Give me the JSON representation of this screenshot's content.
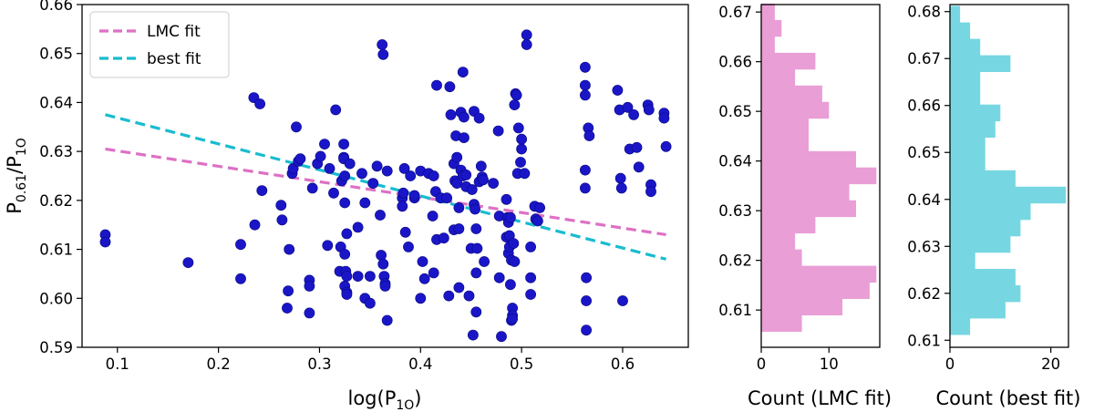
{
  "chart_data": [
    {
      "type": "scatter",
      "xlabel_base": "log(P",
      "xlabel_sub": "1O",
      "xlabel_close": ")",
      "ylabel_base": "P",
      "ylabel_sub1": "0.61",
      "ylabel_slash": "/P",
      "ylabel_sub2": "1O",
      "xlim": [
        0.065,
        0.665
      ],
      "ylim": [
        0.59,
        0.66
      ],
      "xticks": [
        0.1,
        0.2,
        0.3,
        0.4,
        0.5,
        0.6
      ],
      "xtick_labels": [
        "0.1",
        "0.2",
        "0.3",
        "0.4",
        "0.5",
        "0.6"
      ],
      "yticks": [
        0.59,
        0.6,
        0.61,
        0.62,
        0.63,
        0.64,
        0.65,
        0.66
      ],
      "ytick_labels": [
        "0.59",
        "0.60",
        "0.61",
        "0.62",
        "0.63",
        "0.64",
        "0.65",
        "0.66"
      ],
      "point_color": "#1a16c8",
      "points": [
        [
          0.088,
          0.613
        ],
        [
          0.088,
          0.6115
        ],
        [
          0.17,
          0.6073
        ],
        [
          0.222,
          0.611
        ],
        [
          0.222,
          0.604
        ],
        [
          0.235,
          0.641
        ],
        [
          0.236,
          0.615
        ],
        [
          0.241,
          0.6397
        ],
        [
          0.243,
          0.622
        ],
        [
          0.262,
          0.619
        ],
        [
          0.263,
          0.616
        ],
        [
          0.269,
          0.6015
        ],
        [
          0.27,
          0.61
        ],
        [
          0.268,
          0.598
        ],
        [
          0.273,
          0.6255
        ],
        [
          0.274,
          0.6265
        ],
        [
          0.277,
          0.635
        ],
        [
          0.279,
          0.628
        ],
        [
          0.281,
          0.6285
        ],
        [
          0.29,
          0.6037
        ],
        [
          0.29,
          0.6025
        ],
        [
          0.29,
          0.597
        ],
        [
          0.293,
          0.6225
        ],
        [
          0.298,
          0.6275
        ],
        [
          0.301,
          0.629
        ],
        [
          0.305,
          0.6315
        ],
        [
          0.308,
          0.6108
        ],
        [
          0.31,
          0.6265
        ],
        [
          0.314,
          0.6215
        ],
        [
          0.316,
          0.6385
        ],
        [
          0.32,
          0.6055
        ],
        [
          0.321,
          0.6105
        ],
        [
          0.322,
          0.624
        ],
        [
          0.324,
          0.6288
        ],
        [
          0.324,
          0.6285
        ],
        [
          0.324,
          0.6315
        ],
        [
          0.325,
          0.625
        ],
        [
          0.325,
          0.6195
        ],
        [
          0.327,
          0.6132
        ],
        [
          0.325,
          0.609
        ],
        [
          0.326,
          0.6055
        ],
        [
          0.327,
          0.6045
        ],
        [
          0.325,
          0.6025
        ],
        [
          0.327,
          0.6012
        ],
        [
          0.327,
          0.6008
        ],
        [
          0.33,
          0.6275
        ],
        [
          0.338,
          0.6145
        ],
        [
          0.338,
          0.6045
        ],
        [
          0.342,
          0.6255
        ],
        [
          0.345,
          0.6
        ],
        [
          0.345,
          0.6195
        ],
        [
          0.35,
          0.6045
        ],
        [
          0.35,
          0.599
        ],
        [
          0.353,
          0.6235
        ],
        [
          0.357,
          0.627
        ],
        [
          0.36,
          0.617
        ],
        [
          0.361,
          0.6088
        ],
        [
          0.362,
          0.6518
        ],
        [
          0.363,
          0.6498
        ],
        [
          0.363,
          0.607
        ],
        [
          0.364,
          0.6045
        ],
        [
          0.365,
          0.603
        ],
        [
          0.365,
          0.6025
        ],
        [
          0.367,
          0.626
        ],
        [
          0.367,
          0.5955
        ],
        [
          0.382,
          0.6205
        ],
        [
          0.382,
          0.6188
        ],
        [
          0.383,
          0.6215
        ],
        [
          0.384,
          0.6265
        ],
        [
          0.385,
          0.6135
        ],
        [
          0.388,
          0.6105
        ],
        [
          0.39,
          0.625
        ],
        [
          0.394,
          0.6205
        ],
        [
          0.394,
          0.621
        ],
        [
          0.4,
          0.626
        ],
        [
          0.4,
          0.6
        ],
        [
          0.402,
          0.6075
        ],
        [
          0.404,
          0.604
        ],
        [
          0.408,
          0.6255
        ],
        [
          0.412,
          0.6168
        ],
        [
          0.413,
          0.6052
        ],
        [
          0.413,
          0.625
        ],
        [
          0.415,
          0.6218
        ],
        [
          0.416,
          0.6435
        ],
        [
          0.416,
          0.612
        ],
        [
          0.42,
          0.6205
        ],
        [
          0.423,
          0.6123
        ],
        [
          0.426,
          0.6205
        ],
        [
          0.428,
          0.6005
        ],
        [
          0.429,
          0.6432
        ],
        [
          0.43,
          0.6375
        ],
        [
          0.433,
          0.614
        ],
        [
          0.433,
          0.6275
        ],
        [
          0.434,
          0.624
        ],
        [
          0.435,
          0.6332
        ],
        [
          0.436,
          0.6288
        ],
        [
          0.436,
          0.6235
        ],
        [
          0.438,
          0.6185
        ],
        [
          0.438,
          0.6142
        ],
        [
          0.438,
          0.6022
        ],
        [
          0.44,
          0.638
        ],
        [
          0.44,
          0.6262
        ],
        [
          0.442,
          0.6462
        ],
        [
          0.442,
          0.625
        ],
        [
          0.443,
          0.637
        ],
        [
          0.443,
          0.6328
        ],
        [
          0.445,
          0.6252
        ],
        [
          0.445,
          0.6228
        ],
        [
          0.448,
          0.6005
        ],
        [
          0.45,
          0.6102
        ],
        [
          0.451,
          0.6222
        ],
        [
          0.452,
          0.5925
        ],
        [
          0.453,
          0.6382
        ],
        [
          0.453,
          0.6192
        ],
        [
          0.454,
          0.6182
        ],
        [
          0.455,
          0.6142
        ],
        [
          0.455,
          0.6052
        ],
        [
          0.455,
          0.5972
        ],
        [
          0.456,
          0.6102
        ],
        [
          0.458,
          0.6368
        ],
        [
          0.458,
          0.6238
        ],
        [
          0.46,
          0.627
        ],
        [
          0.461,
          0.6248
        ],
        [
          0.462,
          0.6242
        ],
        [
          0.463,
          0.6075
        ],
        [
          0.472,
          0.6235
        ],
        [
          0.477,
          0.6342
        ],
        [
          0.478,
          0.6168
        ],
        [
          0.478,
          0.6042
        ],
        [
          0.48,
          0.5922
        ],
        [
          0.485,
          0.6125
        ],
        [
          0.485,
          0.6202
        ],
        [
          0.486,
          0.6165
        ],
        [
          0.487,
          0.6155
        ],
        [
          0.487,
          0.6092
        ],
        [
          0.488,
          0.6128
        ],
        [
          0.488,
          0.6105
        ],
        [
          0.489,
          0.6165
        ],
        [
          0.489,
          0.6028
        ],
        [
          0.49,
          0.6078
        ],
        [
          0.49,
          0.5955
        ],
        [
          0.491,
          0.598
        ],
        [
          0.491,
          0.5965
        ],
        [
          0.491,
          0.5958
        ],
        [
          0.492,
          0.6112
        ],
        [
          0.493,
          0.6395
        ],
        [
          0.493,
          0.6075
        ],
        [
          0.494,
          0.6418
        ],
        [
          0.495,
          0.6415
        ],
        [
          0.496,
          0.6255
        ],
        [
          0.497,
          0.6348
        ],
        [
          0.499,
          0.6278
        ],
        [
          0.5,
          0.6325
        ],
        [
          0.5,
          0.6305
        ],
        [
          0.503,
          0.6255
        ],
        [
          0.505,
          0.6538
        ],
        [
          0.505,
          0.6518
        ],
        [
          0.509,
          0.6105
        ],
        [
          0.509,
          0.6042
        ],
        [
          0.509,
          0.6008
        ],
        [
          0.513,
          0.6188
        ],
        [
          0.514,
          0.6162
        ],
        [
          0.516,
          0.6158
        ],
        [
          0.518,
          0.6185
        ],
        [
          0.563,
          0.6472
        ],
        [
          0.563,
          0.6435
        ],
        [
          0.563,
          0.6415
        ],
        [
          0.563,
          0.6262
        ],
        [
          0.563,
          0.6225
        ],
        [
          0.564,
          0.6042
        ],
        [
          0.564,
          0.5995
        ],
        [
          0.564,
          0.5935
        ],
        [
          0.566,
          0.6348
        ],
        [
          0.567,
          0.6332
        ],
        [
          0.595,
          0.6425
        ],
        [
          0.597,
          0.6385
        ],
        [
          0.598,
          0.6245
        ],
        [
          0.599,
          0.6225
        ],
        [
          0.6,
          0.5995
        ],
        [
          0.605,
          0.639
        ],
        [
          0.607,
          0.6305
        ],
        [
          0.611,
          0.6375
        ],
        [
          0.614,
          0.6308
        ],
        [
          0.616,
          0.6268
        ],
        [
          0.625,
          0.6395
        ],
        [
          0.626,
          0.6385
        ],
        [
          0.628,
          0.6232
        ],
        [
          0.628,
          0.6218
        ],
        [
          0.641,
          0.6378
        ],
        [
          0.641,
          0.6368
        ],
        [
          0.643,
          0.631
        ]
      ],
      "lines": [
        {
          "name": "LMC fit",
          "color": "#de70c4",
          "x": [
            0.088,
            0.643
          ],
          "y": [
            0.6305,
            0.613
          ]
        },
        {
          "name": "best fit",
          "color": "#18bccf",
          "x": [
            0.088,
            0.643
          ],
          "y": [
            0.6375,
            0.608
          ]
        }
      ],
      "legend_position": "upper-left"
    },
    {
      "type": "histogram-horizontal",
      "xlabel": "Count (LMC fit)",
      "ylim": [
        0.6025,
        0.6715
      ],
      "xlim": [
        0,
        17.5
      ],
      "xticks": [
        0,
        10
      ],
      "xtick_labels": [
        "0",
        "10"
      ],
      "yticks": [
        0.61,
        0.62,
        0.63,
        0.64,
        0.65,
        0.66,
        0.67
      ],
      "ytick_labels": [
        "0.61",
        "0.62",
        "0.63",
        "0.64",
        "0.65",
        "0.66",
        "0.67"
      ],
      "color": "#e99ed6",
      "bins": [
        {
          "lo": 0.6057,
          "hi": 0.609,
          "count": 6
        },
        {
          "lo": 0.609,
          "hi": 0.6123,
          "count": 12
        },
        {
          "lo": 0.6123,
          "hi": 0.6156,
          "count": 16
        },
        {
          "lo": 0.6156,
          "hi": 0.6189,
          "count": 17
        },
        {
          "lo": 0.6189,
          "hi": 0.6222,
          "count": 6
        },
        {
          "lo": 0.6222,
          "hi": 0.6255,
          "count": 5
        },
        {
          "lo": 0.6255,
          "hi": 0.6288,
          "count": 8
        },
        {
          "lo": 0.6288,
          "hi": 0.6321,
          "count": 14
        },
        {
          "lo": 0.6321,
          "hi": 0.6354,
          "count": 13
        },
        {
          "lo": 0.6354,
          "hi": 0.6387,
          "count": 17
        },
        {
          "lo": 0.6387,
          "hi": 0.642,
          "count": 14
        },
        {
          "lo": 0.642,
          "hi": 0.6453,
          "count": 7
        },
        {
          "lo": 0.6453,
          "hi": 0.6486,
          "count": 7
        },
        {
          "lo": 0.6486,
          "hi": 0.6519,
          "count": 10
        },
        {
          "lo": 0.6519,
          "hi": 0.6552,
          "count": 9
        },
        {
          "lo": 0.6552,
          "hi": 0.6585,
          "count": 5
        },
        {
          "lo": 0.6585,
          "hi": 0.6618,
          "count": 8
        },
        {
          "lo": 0.6618,
          "hi": 0.6651,
          "count": 2
        },
        {
          "lo": 0.6651,
          "hi": 0.6684,
          "count": 3
        },
        {
          "lo": 0.6684,
          "hi": 0.6717,
          "count": 2
        }
      ]
    },
    {
      "type": "histogram-horizontal",
      "xlabel": "Count (best fit)",
      "ylim": [
        0.6085,
        0.6815
      ],
      "xlim": [
        0,
        23.5
      ],
      "xticks": [
        0,
        20
      ],
      "xtick_labels": [
        "0",
        "20"
      ],
      "yticks": [
        0.61,
        0.62,
        0.63,
        0.64,
        0.65,
        0.66,
        0.67,
        0.68
      ],
      "ytick_labels": [
        "0.61",
        "0.62",
        "0.63",
        "0.64",
        "0.65",
        "0.66",
        "0.67",
        "0.68"
      ],
      "color": "#76d7e2",
      "bins": [
        {
          "lo": 0.6112,
          "hi": 0.6147,
          "count": 4
        },
        {
          "lo": 0.6147,
          "hi": 0.6182,
          "count": 11
        },
        {
          "lo": 0.6182,
          "hi": 0.6217,
          "count": 14
        },
        {
          "lo": 0.6217,
          "hi": 0.6252,
          "count": 13
        },
        {
          "lo": 0.6252,
          "hi": 0.6287,
          "count": 5
        },
        {
          "lo": 0.6287,
          "hi": 0.6322,
          "count": 12
        },
        {
          "lo": 0.6322,
          "hi": 0.6357,
          "count": 14
        },
        {
          "lo": 0.6357,
          "hi": 0.6392,
          "count": 16
        },
        {
          "lo": 0.6392,
          "hi": 0.6427,
          "count": 23
        },
        {
          "lo": 0.6427,
          "hi": 0.6462,
          "count": 13
        },
        {
          "lo": 0.6462,
          "hi": 0.6497,
          "count": 7
        },
        {
          "lo": 0.6497,
          "hi": 0.6532,
          "count": 7
        },
        {
          "lo": 0.6532,
          "hi": 0.6567,
          "count": 9
        },
        {
          "lo": 0.6567,
          "hi": 0.6602,
          "count": 10
        },
        {
          "lo": 0.6602,
          "hi": 0.6637,
          "count": 6
        },
        {
          "lo": 0.6637,
          "hi": 0.6672,
          "count": 6
        },
        {
          "lo": 0.6672,
          "hi": 0.6707,
          "count": 12
        },
        {
          "lo": 0.6707,
          "hi": 0.6742,
          "count": 6
        },
        {
          "lo": 0.6742,
          "hi": 0.6777,
          "count": 4
        },
        {
          "lo": 0.6777,
          "hi": 0.6812,
          "count": 2
        }
      ]
    }
  ]
}
